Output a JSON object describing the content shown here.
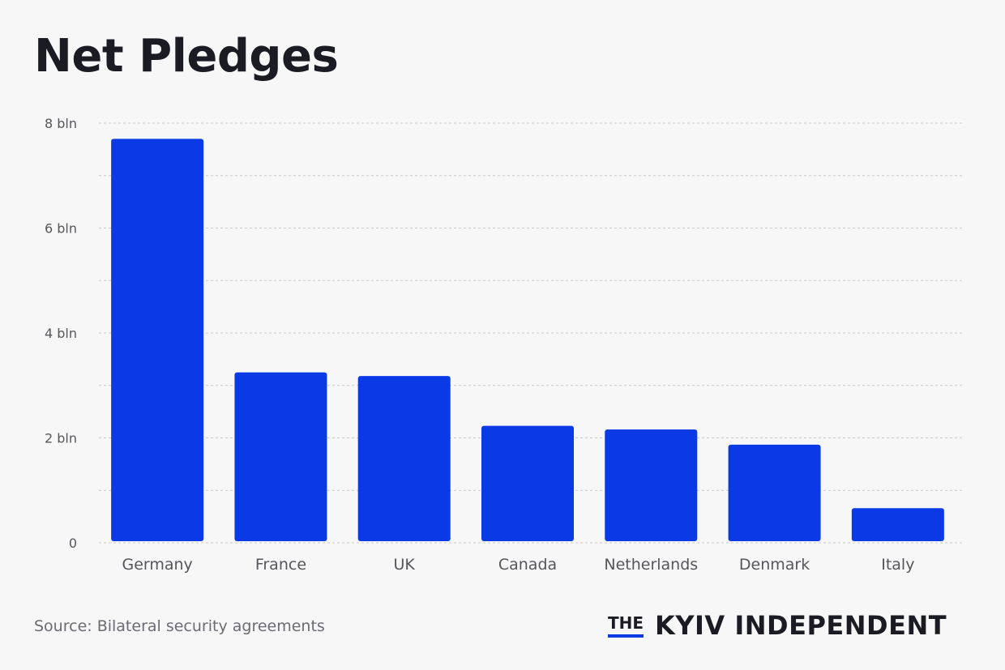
{
  "header": {
    "title": "Net Pledges"
  },
  "footer": {
    "source": "Source: Bilateral security agreements",
    "logo_the": "THE",
    "logo_name": "KYIV INDEPENDENT"
  },
  "colors": {
    "bar": "#0a3ae6",
    "grid": "#c9c9c9",
    "text": "#55555c"
  },
  "chart_data": {
    "type": "bar",
    "title": "Net Pledges",
    "xlabel": "",
    "ylabel": "",
    "categories": [
      "Germany",
      "France",
      "UK",
      "Canada",
      "Netherlands",
      "Denmark",
      "Italy"
    ],
    "values": [
      7.7,
      3.25,
      3.18,
      2.23,
      2.16,
      1.87,
      0.66
    ],
    "ylim": [
      0,
      8
    ],
    "yticks": [
      0,
      2,
      4,
      6,
      8
    ],
    "ytick_labels": [
      "0",
      "2 bln",
      "4 bln",
      "6 bln",
      "8 bln"
    ],
    "minor_gridlines": [
      1,
      3,
      5,
      7
    ],
    "grid": true,
    "legend": "none"
  }
}
